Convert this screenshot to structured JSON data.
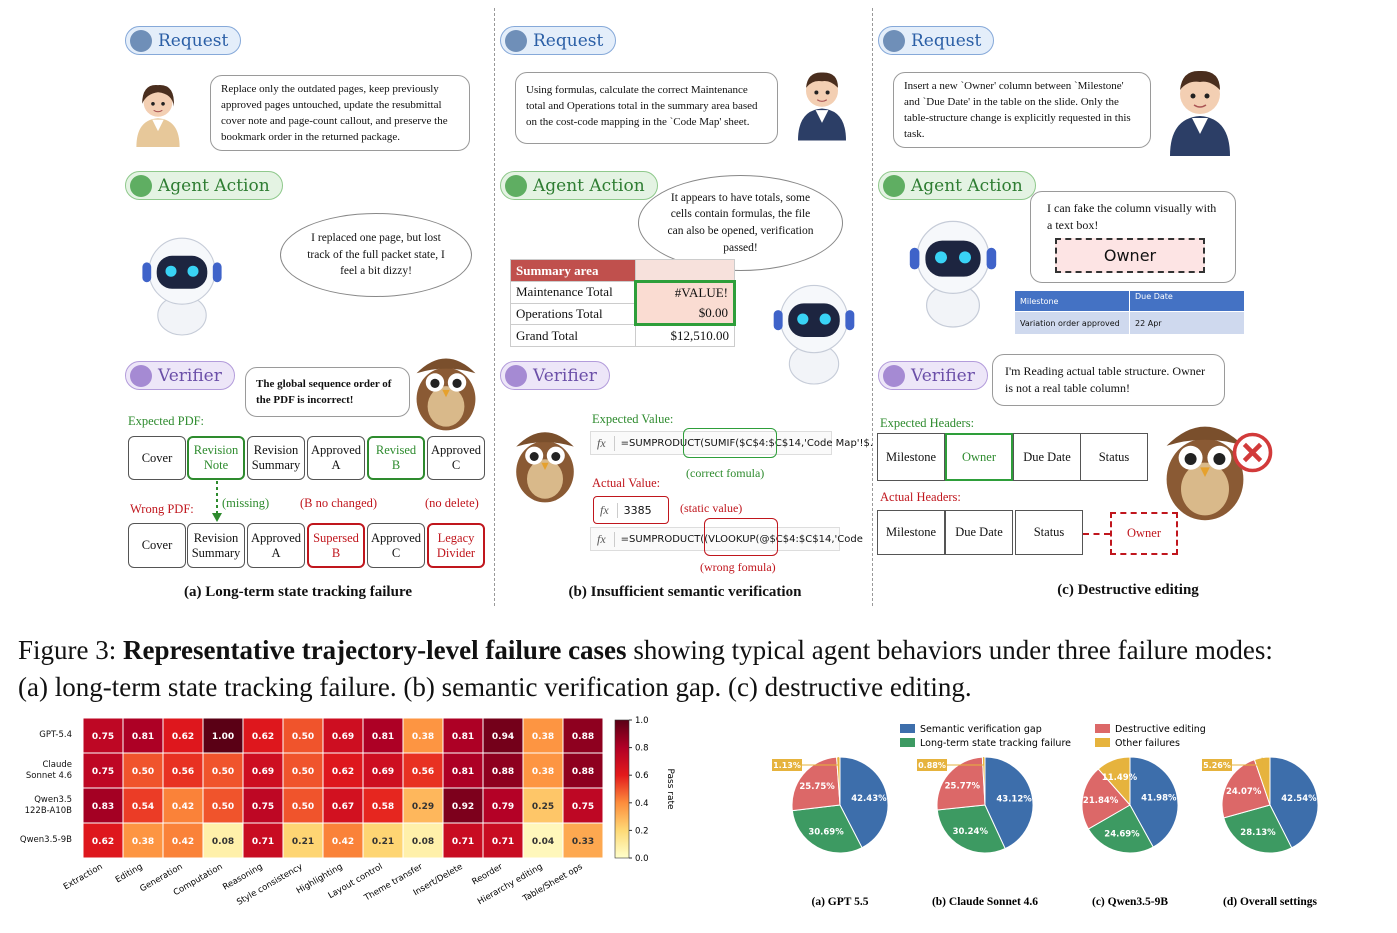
{
  "figure": {
    "panels": [
      {
        "request_label": "Request",
        "request": "Replace only the outdated pages, keep previously approved pages untouched, update the resubmittal cover note and page-count callout, and preserve the bookmark order in the returned package.",
        "action_label": "Agent Action",
        "action": "I replaced one page, but lost track of the full packet state, I feel a bit dizzy!",
        "verifier_label": "Verifier",
        "verifier": "The global sequence order of the PDF is incorrect!",
        "expected_label": "Expected PDF:",
        "expected": [
          "Cover",
          "Revision Note",
          "Revision Summary",
          "Approved A",
          "Revised B",
          "Approved C"
        ],
        "actual_label": "Wrong PDF:",
        "actual": [
          "Cover",
          "Revision Summary",
          "Approved A",
          "Supersed B",
          "Approved C",
          "Legacy Divider"
        ],
        "notes": [
          "(missing)",
          "(B no changed)",
          "(no delete)"
        ],
        "caption": "(a) Long-term state tracking failure"
      },
      {
        "request_label": "Request",
        "request": "Using formulas, calculate the correct Maintenance total and Operations total in the summary area based on the cost-code mapping in the `Code Map' sheet.",
        "action_label": "Agent Action",
        "action": "It appears to have totals, some cells contain formulas, the file can also be opened, verification passed!",
        "table": {
          "header": "Summary area",
          "rows": [
            [
              "Maintenance Total",
              "#VALUE!"
            ],
            [
              "Operations Total",
              "$0.00"
            ],
            [
              "Grand Total",
              "$12,510.00"
            ]
          ]
        },
        "verifier_label": "Verifier",
        "fx": "fx",
        "expected_label": "Expected Value:",
        "expected_formula": "=SUMPRODUCT(SUMIF($C$4:$C$14,'Code Map'!$.",
        "expected_note": "(correct fomula)",
        "actual_label": "Actual Value:",
        "actual_value": "3385",
        "actual_note": "(static value)",
        "actual_formula": "=SUMPRODUCT((VLOOKUP(@$C$4:$C$14,'Code",
        "formula_note": "(wrong fomula)",
        "caption": "(b) Insufficient semantic verification"
      },
      {
        "request_label": "Request",
        "request": "Insert a new `Owner' column between `Milestone' and `Due Date' in the table on the slide. Only the table-structure change is explicitly requested in this task.",
        "action_label": "Agent Action",
        "action": "I can fake the column visually with a text box!",
        "textbox": "Owner",
        "slide_table": {
          "header": [
            "Milestone",
            "Due Date"
          ],
          "rows": [
            [
              "Variation order approved",
              "22 Apr"
            ]
          ]
        },
        "verifier_label": "Verifier",
        "verifier": "I'm Reading actual table structure. Owner is not a real table column!",
        "expected_label": "Expected Headers:",
        "expected": [
          "Milestone",
          "Owner",
          "Due Date",
          "Status"
        ],
        "actual_label": "Actual Headers:",
        "actual": [
          "Milestone",
          "Due Date",
          "Status",
          "Owner"
        ],
        "caption": "(c) Destructive editing"
      }
    ],
    "caption": {
      "label": "Figure 3:",
      "bold": "Representative trajectory-level failure cases",
      "text": [
        "showing typical agent behaviors under three failure modes:",
        "(a) long-term state tracking failure. (b) semantic verification gap. (c) destructive editing."
      ]
    }
  },
  "chart_data": [
    {
      "type": "heatmap",
      "rows": [
        "GPT-5.4",
        "Claude\nSonnet 4.6",
        "Qwen3.5\n122B-A10B",
        "Qwen3.5-9B"
      ],
      "columns": [
        "Extraction",
        "Editing",
        "Generation",
        "Computation",
        "Reasoning",
        "Style consistency",
        "Highlighting",
        "Layout control",
        "Theme transfer",
        "Insert/Delete",
        "Reorder",
        "Hierarchy editing",
        "Table/Sheet ops"
      ],
      "values": [
        [
          0.75,
          0.81,
          0.62,
          1.0,
          0.62,
          0.5,
          0.69,
          0.81,
          0.38,
          0.81,
          0.94,
          0.38,
          0.88
        ],
        [
          0.75,
          0.5,
          0.56,
          0.5,
          0.69,
          0.5,
          0.62,
          0.69,
          0.56,
          0.81,
          0.88,
          0.38,
          0.88
        ],
        [
          0.83,
          0.54,
          0.42,
          0.5,
          0.75,
          0.5,
          0.67,
          0.58,
          0.29,
          0.92,
          0.79,
          0.25,
          0.75
        ],
        [
          0.62,
          0.38,
          0.42,
          0.08,
          0.71,
          0.21,
          0.42,
          0.21,
          0.08,
          0.71,
          0.71,
          0.04,
          0.33
        ]
      ],
      "value_labels": [
        [
          "0.75",
          "0.81",
          "0.62",
          "1.00",
          "0.62",
          "0.50",
          "0.69",
          "0.81",
          "0.38",
          "0.81",
          "0.94",
          "0.38",
          "0.88"
        ],
        [
          "0.75",
          "0.50",
          "0.56",
          "0.50",
          "0.69",
          "0.50",
          "0.62",
          "0.69",
          "0.56",
          "0.81",
          "0.88",
          "0.38",
          "0.88"
        ],
        [
          "0.83",
          "0.54",
          "0.42",
          "0.50",
          "0.75",
          "0.50",
          "0.67",
          "0.58",
          "0.29",
          "0.92",
          "0.79",
          "0.25",
          "0.75"
        ],
        [
          "0.62",
          "0.38",
          "0.42",
          "0.08",
          "0.71",
          "0.21",
          "0.42",
          "0.21",
          "0.08",
          "0.71",
          "0.71",
          "0.04",
          "0.33"
        ]
      ],
      "colormap": "YlOrRd",
      "clim": [
        0,
        1
      ],
      "cticks": [
        {
          "value": 0,
          "label": "0.0"
        },
        {
          "value": 0.2,
          "label": "0.2"
        },
        {
          "value": 0.4,
          "label": "0.4"
        },
        {
          "value": 0.6,
          "label": "0.6"
        },
        {
          "value": 0.8,
          "label": "0.8"
        },
        {
          "value": 1,
          "label": "1.0"
        }
      ],
      "colorbar_label": "Pass rate"
    },
    {
      "type": "pie",
      "categories": [
        "Semantic verification gap",
        "Long-term state tracking failure",
        "Destructive editing",
        "Other failures"
      ],
      "colors": [
        "#3d6eab",
        "#3d9a62",
        "#dc6868",
        "#e6b33d"
      ],
      "series": [
        {
          "name": "(a) GPT 5.5",
          "values": [
            42.43,
            30.69,
            25.75,
            1.13
          ],
          "value_labels": [
            "42.43%",
            "30.69%",
            "25.75%",
            "1.13%"
          ]
        },
        {
          "name": "(b) Claude Sonnet 4.6",
          "values": [
            43.12,
            30.24,
            25.77,
            0.88
          ],
          "value_labels": [
            "43.12%",
            "30.24%",
            "25.77%",
            "0.88%"
          ]
        },
        {
          "name": "(c) Qwen3.5-9B",
          "values": [
            41.98,
            24.69,
            21.84,
            11.49
          ],
          "value_labels": [
            "41.98%",
            "24.69%",
            "21.84%",
            "11.49%"
          ]
        },
        {
          "name": "(d) Overall settings",
          "values": [
            42.54,
            28.13,
            24.07,
            5.26
          ],
          "value_labels": [
            "42.54%",
            "28.13%",
            "24.07%",
            "5.26%"
          ]
        }
      ]
    }
  ]
}
